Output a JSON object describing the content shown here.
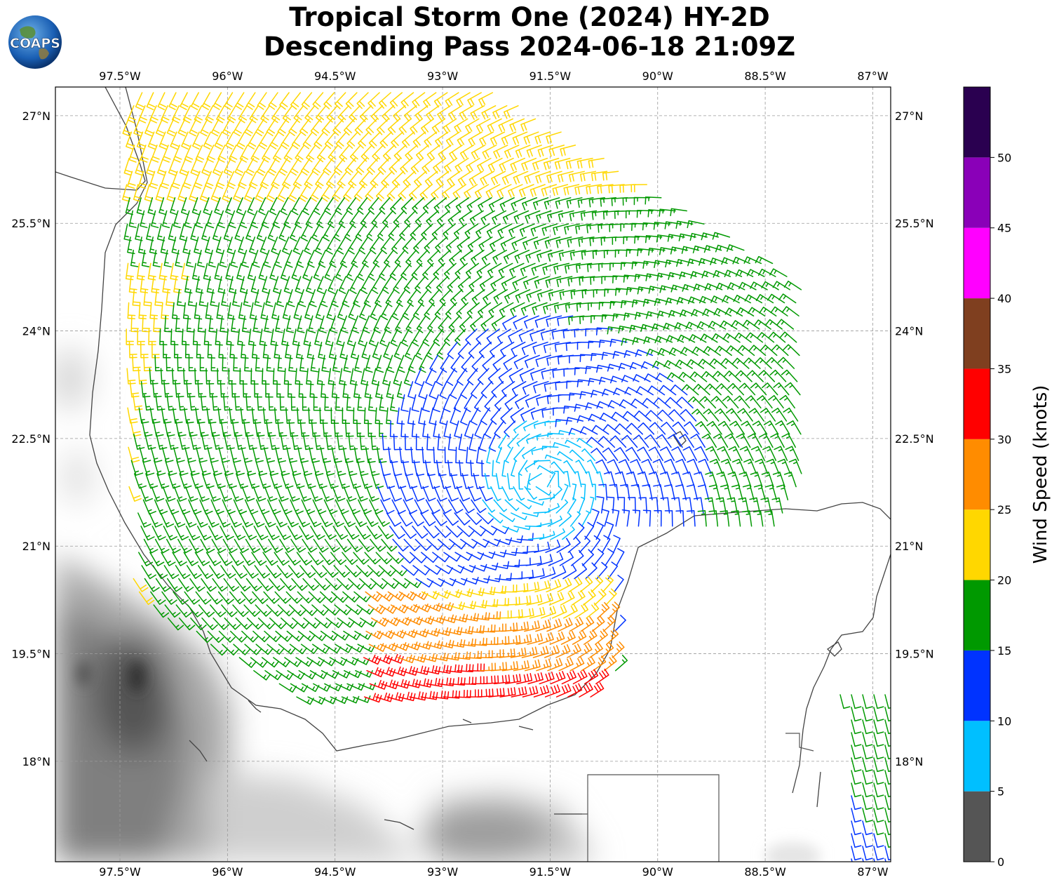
{
  "title": {
    "line1": "Tropical Storm One (2024) HY-2D",
    "line2": "Descending Pass 2024-06-18 21:09Z"
  },
  "logo": {
    "text": "COAPS",
    "icon": "globe-icon"
  },
  "map": {
    "lon_ticks": [
      "97.5°W",
      "96°W",
      "94.5°W",
      "93°W",
      "91.5°W",
      "90°W",
      "88.5°W",
      "87°W"
    ],
    "lat_ticks": [
      "27°N",
      "25.5°N",
      "24°N",
      "22.5°N",
      "21°N",
      "19.5°N",
      "18°N"
    ],
    "lon_range": [
      -98.4,
      -86.75
    ],
    "lat_range": [
      16.6,
      27.4
    ],
    "storm_center": {
      "lon": -91.6,
      "lat": 21.9
    },
    "gridlines": true
  },
  "colorbar": {
    "label": "Wind Speed (knots)",
    "ticks": [
      "0",
      "5",
      "10",
      "15",
      "20",
      "25",
      "30",
      "35",
      "40",
      "45",
      "50"
    ],
    "bins": [
      {
        "min": 0,
        "max": 5,
        "color": "#555555"
      },
      {
        "min": 5,
        "max": 10,
        "color": "#00bfff"
      },
      {
        "min": 10,
        "max": 15,
        "color": "#0033ff"
      },
      {
        "min": 15,
        "max": 20,
        "color": "#009900"
      },
      {
        "min": 20,
        "max": 25,
        "color": "#ffd700"
      },
      {
        "min": 25,
        "max": 30,
        "color": "#ff8c00"
      },
      {
        "min": 30,
        "max": 35,
        "color": "#ff0000"
      },
      {
        "min": 35,
        "max": 40,
        "color": "#7f3f1f"
      },
      {
        "min": 40,
        "max": 45,
        "color": "#ff00ff"
      },
      {
        "min": 45,
        "max": 50,
        "color": "#8a00b8"
      },
      {
        "min": 50,
        "max": 55,
        "color": "#2a0050"
      }
    ]
  }
}
